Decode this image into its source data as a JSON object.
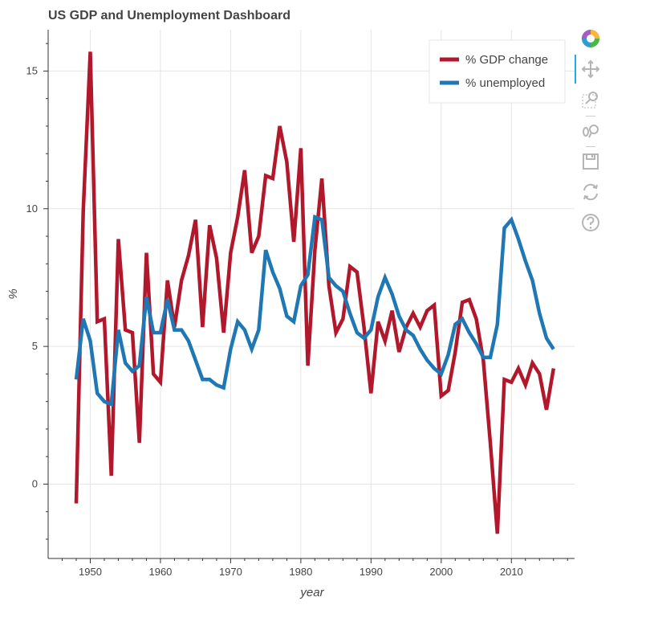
{
  "title": "US GDP and Unemployment Dashboard",
  "toolbar": {
    "tools": [
      "bokeh-logo-icon",
      "pan-icon",
      "box-zoom-icon",
      "wheel-zoom-icon",
      "save-icon",
      "reset-icon",
      "help-icon"
    ],
    "active_tool": "pan-icon"
  },
  "chart_data": {
    "type": "line",
    "xlabel": "year",
    "ylabel": "%",
    "xlim": [
      1944,
      2019
    ],
    "ylim": [
      -2.7,
      16.5
    ],
    "x_ticks": [
      1950,
      1960,
      1970,
      1980,
      1990,
      2000,
      2010
    ],
    "y_ticks": [
      0,
      5,
      10,
      15
    ],
    "grid": true,
    "legend_position": "top-right",
    "x": [
      1948,
      1949,
      1950,
      1951,
      1952,
      1953,
      1954,
      1955,
      1956,
      1957,
      1958,
      1959,
      1960,
      1961,
      1962,
      1963,
      1964,
      1965,
      1966,
      1967,
      1968,
      1969,
      1970,
      1971,
      1972,
      1973,
      1974,
      1975,
      1976,
      1977,
      1978,
      1979,
      1980,
      1981,
      1982,
      1983,
      1984,
      1985,
      1986,
      1987,
      1988,
      1989,
      1990,
      1991,
      1992,
      1993,
      1994,
      1995,
      1996,
      1997,
      1998,
      1999,
      2000,
      2001,
      2002,
      2003,
      2004,
      2005,
      2006,
      2007,
      2008,
      2009,
      2010,
      2011,
      2012,
      2013,
      2014,
      2015,
      2016
    ],
    "series": [
      {
        "name": "% GDP change",
        "color": "#b2182b",
        "values": [
          -0.7,
          9.9,
          15.7,
          5.9,
          6.0,
          0.3,
          8.9,
          5.6,
          5.5,
          1.5,
          8.4,
          4.0,
          3.7,
          7.4,
          5.7,
          7.4,
          8.3,
          9.6,
          5.7,
          9.4,
          8.2,
          5.5,
          8.4,
          9.7,
          11.4,
          8.4,
          9.0,
          11.2,
          11.1,
          13.0,
          11.7,
          8.8,
          12.2,
          4.3,
          8.5,
          11.1,
          7.2,
          5.5,
          6.0,
          7.9,
          7.7,
          5.7,
          3.3,
          5.9,
          5.2,
          6.3,
          4.8,
          5.7,
          6.2,
          5.7,
          6.3,
          6.5,
          3.2,
          3.4,
          4.8,
          6.6,
          6.7,
          6.0,
          4.5,
          1.5,
          -1.8,
          3.8,
          3.7,
          4.2,
          3.6,
          4.4,
          4.0,
          2.7,
          4.2
        ]
      },
      {
        "name": "% unemployed",
        "color": "#1f77b4",
        "values": [
          3.8,
          6.0,
          5.2,
          3.3,
          3.0,
          2.9,
          5.6,
          4.4,
          4.1,
          4.3,
          6.8,
          5.5,
          5.5,
          6.7,
          5.6,
          5.6,
          5.2,
          4.5,
          3.8,
          3.8,
          3.6,
          3.5,
          4.9,
          5.9,
          5.6,
          4.9,
          5.6,
          8.5,
          7.7,
          7.1,
          6.1,
          5.9,
          7.2,
          7.6,
          9.7,
          9.6,
          7.5,
          7.2,
          7.0,
          6.2,
          5.5,
          5.3,
          5.6,
          6.8,
          7.5,
          6.9,
          6.1,
          5.6,
          5.4,
          4.9,
          4.5,
          4.2,
          4.0,
          4.7,
          5.8,
          6.0,
          5.5,
          5.1,
          4.6,
          4.6,
          5.8,
          9.3,
          9.6,
          8.9,
          8.1,
          7.4,
          6.2,
          5.3,
          4.9
        ]
      }
    ]
  }
}
